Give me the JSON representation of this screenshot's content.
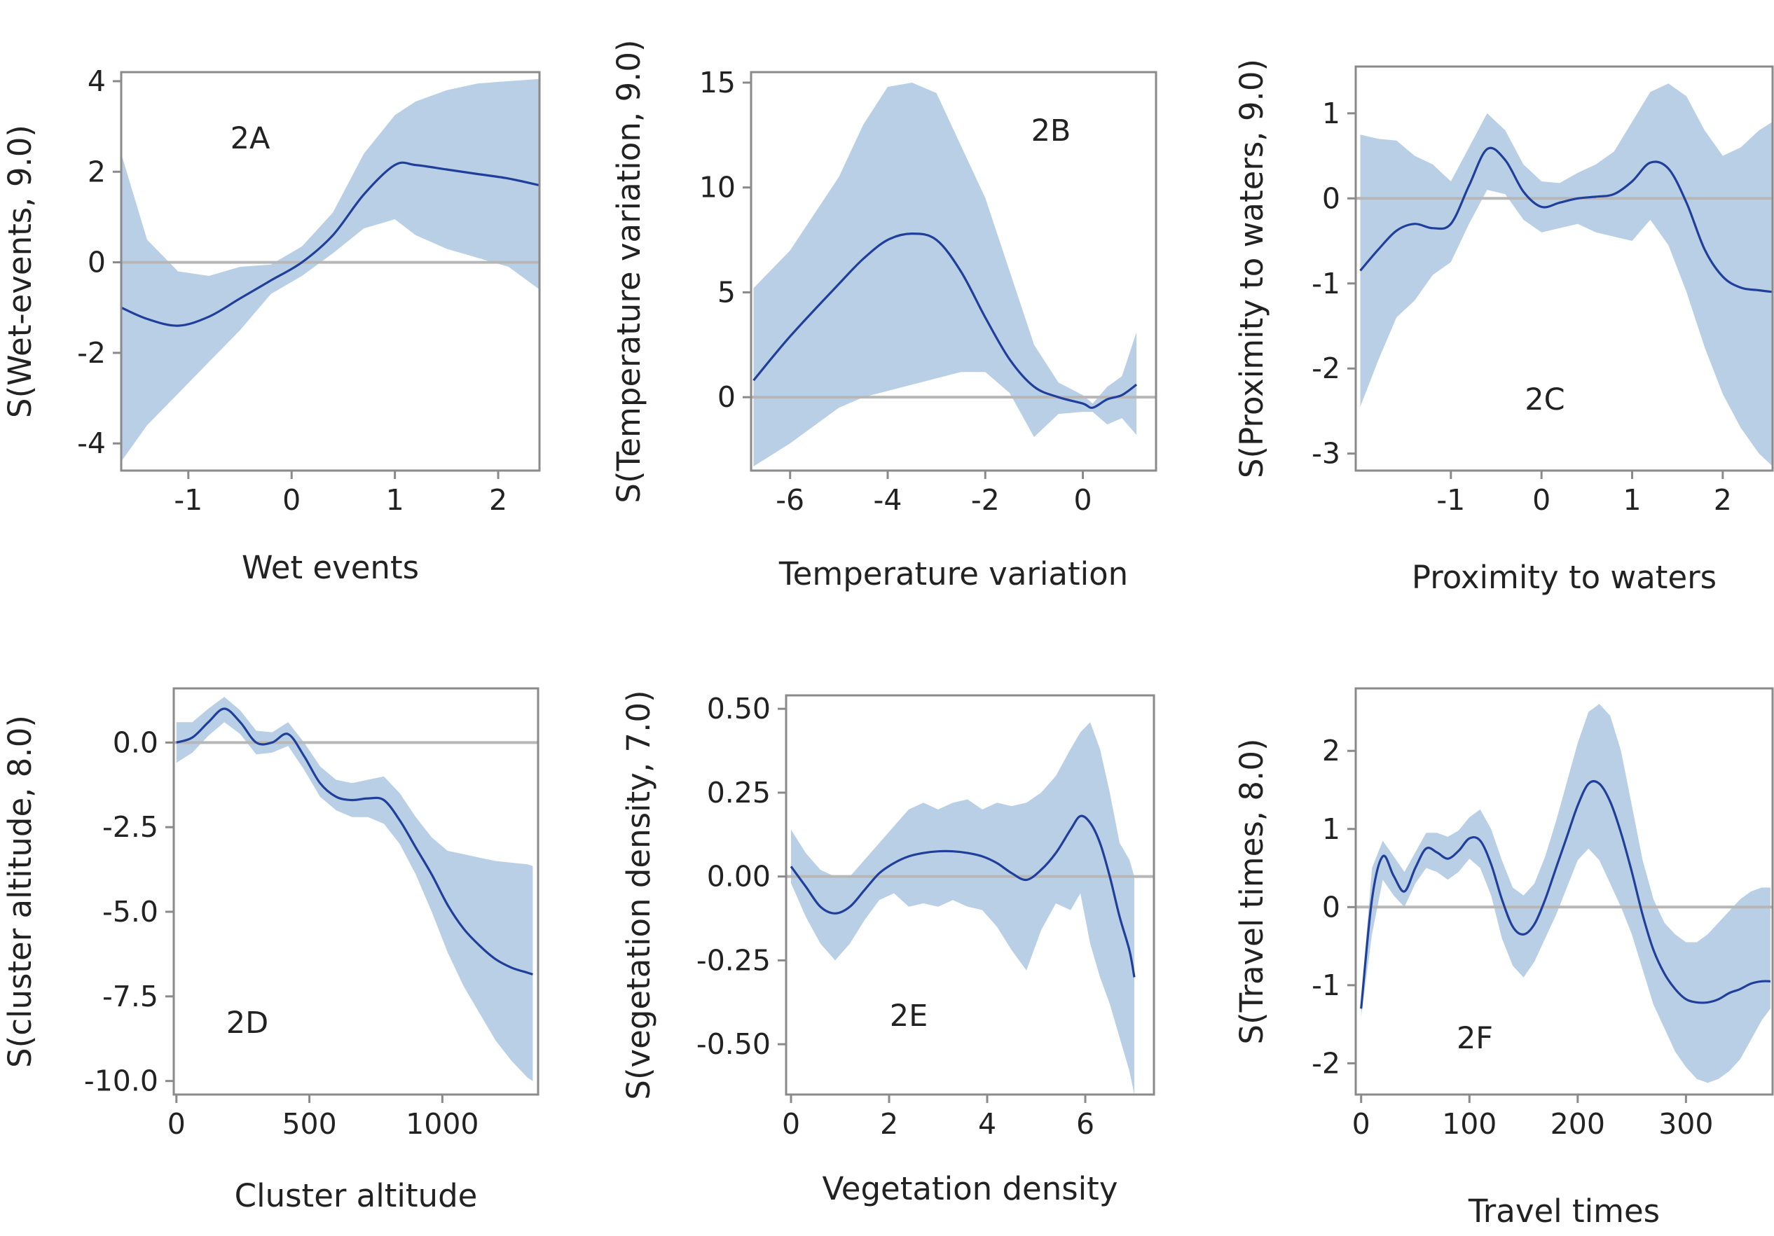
{
  "figure": {
    "background": "#ffffff",
    "band_color": "#b9cfe6",
    "line_color": "#1f3f9a",
    "zero_line_color": "#b7b7b7"
  },
  "chart_data": [
    {
      "type": "line",
      "panel_label": "2A",
      "xlabel": "Wet events",
      "ylabel": "S(Wet-events, 9.0)",
      "xlim": [
        -1.65,
        2.4
      ],
      "ylim": [
        -4.6,
        4.2
      ],
      "xticks": [
        -1,
        0,
        1,
        2
      ],
      "yticks": [
        -4,
        -2,
        0,
        2,
        4
      ],
      "grid": false,
      "reference_line_y": 0,
      "series": [
        {
          "x": [
            -1.65,
            -1.4,
            -1.1,
            -0.8,
            -0.5,
            -0.2,
            0.1,
            0.4,
            0.7,
            1.0,
            1.2,
            1.5,
            1.8,
            2.1,
            2.4
          ],
          "y": [
            -1.0,
            -1.25,
            -1.4,
            -1.2,
            -0.8,
            -0.4,
            0.0,
            0.6,
            1.5,
            2.15,
            2.15,
            2.05,
            1.95,
            1.85,
            1.7
          ],
          "lower": [
            -4.4,
            -3.6,
            -2.9,
            -2.2,
            -1.5,
            -0.7,
            -0.3,
            0.2,
            0.75,
            0.95,
            0.6,
            0.3,
            0.1,
            -0.1,
            -0.6
          ],
          "upper": [
            2.4,
            0.5,
            -0.2,
            -0.3,
            -0.1,
            -0.05,
            0.35,
            1.1,
            2.4,
            3.25,
            3.55,
            3.8,
            3.95,
            4.0,
            4.05
          ]
        }
      ]
    },
    {
      "type": "line",
      "panel_label": "2B",
      "xlabel": "Temperature variation",
      "ylabel": "S(Temperature  variation, 9.0)",
      "xlim": [
        -6.8,
        1.5
      ],
      "ylim": [
        -3.5,
        15.5
      ],
      "xticks": [
        -6,
        -4,
        -2,
        0
      ],
      "yticks": [
        0,
        5,
        10,
        15
      ],
      "grid": false,
      "reference_line_y": 0,
      "series": [
        {
          "x": [
            -6.75,
            -6,
            -5,
            -4.5,
            -4,
            -3.5,
            -3,
            -2.5,
            -2,
            -1.5,
            -1,
            -0.5,
            0,
            0.2,
            0.5,
            0.8,
            1.1
          ],
          "y": [
            0.8,
            2.9,
            5.4,
            6.6,
            7.5,
            7.8,
            7.5,
            6.0,
            3.8,
            1.8,
            0.5,
            0.0,
            -0.3,
            -0.5,
            -0.1,
            0.1,
            0.6
          ],
          "lower": [
            -3.3,
            -2.2,
            -0.5,
            0.0,
            0.3,
            0.6,
            0.9,
            1.2,
            1.2,
            0.2,
            -1.9,
            -0.8,
            -0.7,
            -0.7,
            -1.3,
            -1.0,
            -1.8
          ],
          "upper": [
            5.2,
            7.0,
            10.5,
            13.0,
            14.8,
            15.0,
            14.5,
            12.0,
            9.5,
            6.0,
            2.5,
            0.7,
            0.1,
            -0.3,
            0.5,
            1.0,
            3.1
          ]
        }
      ]
    },
    {
      "type": "line",
      "panel_label": "2C",
      "xlabel": "Proximity to waters",
      "ylabel": "S(Proximity to waters, 9.0)",
      "xlim": [
        -2.05,
        2.55
      ],
      "ylim": [
        -3.2,
        1.55
      ],
      "xticks": [
        -1,
        0,
        1,
        2
      ],
      "yticks": [
        1,
        0,
        -1,
        -2,
        -3
      ],
      "grid": false,
      "reference_line_y": 0,
      "series": [
        {
          "x": [
            -2.0,
            -1.8,
            -1.6,
            -1.4,
            -1.2,
            -1.0,
            -0.8,
            -0.6,
            -0.4,
            -0.2,
            0.0,
            0.2,
            0.4,
            0.6,
            0.8,
            1.0,
            1.2,
            1.4,
            1.6,
            1.8,
            2.0,
            2.2,
            2.4,
            2.55
          ],
          "y": [
            -0.85,
            -0.6,
            -0.38,
            -0.3,
            -0.35,
            -0.3,
            0.15,
            0.58,
            0.45,
            0.08,
            -0.1,
            -0.05,
            0.0,
            0.02,
            0.05,
            0.2,
            0.42,
            0.35,
            -0.05,
            -0.6,
            -0.92,
            -1.05,
            -1.08,
            -1.1
          ],
          "lower": [
            -2.45,
            -1.9,
            -1.4,
            -1.2,
            -0.9,
            -0.75,
            -0.3,
            0.1,
            0.05,
            -0.25,
            -0.4,
            -0.35,
            -0.3,
            -0.4,
            -0.45,
            -0.5,
            -0.25,
            -0.55,
            -1.1,
            -1.75,
            -2.3,
            -2.7,
            -3.0,
            -3.15
          ],
          "upper": [
            0.75,
            0.7,
            0.68,
            0.5,
            0.4,
            0.2,
            0.6,
            1.0,
            0.8,
            0.4,
            0.2,
            0.18,
            0.3,
            0.4,
            0.55,
            0.9,
            1.25,
            1.35,
            1.2,
            0.8,
            0.5,
            0.6,
            0.8,
            0.9
          ]
        }
      ]
    },
    {
      "type": "line",
      "panel_label": "2D",
      "xlabel": "Cluster altitude",
      "ylabel": "S(cluster altitude, 8.0)",
      "xlim": [
        -10,
        1360
      ],
      "ylim": [
        -10.4,
        1.6
      ],
      "xticks": [
        0,
        500,
        1000
      ],
      "yticks": [
        0.0,
        -2.5,
        -5.0,
        -7.5,
        -10.0
      ],
      "ytick_labels": [
        "0.0",
        "-2.5",
        "-5.0",
        "-7.5",
        "-10.0"
      ],
      "grid": false,
      "reference_line_y": 0,
      "series": [
        {
          "x": [
            0,
            60,
            120,
            180,
            240,
            300,
            360,
            420,
            480,
            540,
            600,
            660,
            720,
            780,
            840,
            900,
            960,
            1020,
            1080,
            1140,
            1200,
            1260,
            1320,
            1340
          ],
          "y": [
            0.0,
            0.15,
            0.6,
            1.0,
            0.6,
            0.0,
            0.0,
            0.25,
            -0.4,
            -1.2,
            -1.6,
            -1.7,
            -1.65,
            -1.7,
            -2.3,
            -3.1,
            -3.9,
            -4.8,
            -5.5,
            -6.0,
            -6.4,
            -6.65,
            -6.8,
            -6.85
          ],
          "lower": [
            -0.6,
            -0.3,
            0.2,
            0.6,
            0.25,
            -0.35,
            -0.3,
            -0.1,
            -0.8,
            -1.6,
            -2.0,
            -2.2,
            -2.2,
            -2.4,
            -3.0,
            -3.9,
            -5.0,
            -6.2,
            -7.2,
            -8.0,
            -8.8,
            -9.4,
            -9.9,
            -10.0
          ],
          "upper": [
            0.6,
            0.6,
            1.0,
            1.35,
            0.95,
            0.35,
            0.3,
            0.6,
            0.0,
            -0.7,
            -1.1,
            -1.2,
            -1.1,
            -1.0,
            -1.5,
            -2.2,
            -2.8,
            -3.2,
            -3.3,
            -3.4,
            -3.5,
            -3.55,
            -3.6,
            -3.65
          ]
        }
      ]
    },
    {
      "type": "line",
      "panel_label": "2E",
      "xlabel": "Vegetation density",
      "ylabel": "S(vegetation density, 7.0)",
      "xlim": [
        -0.1,
        7.4
      ],
      "ylim": [
        -0.65,
        0.54
      ],
      "xticks": [
        0,
        2,
        4,
        6
      ],
      "yticks": [
        0.5,
        0.25,
        0.0,
        -0.25,
        -0.5
      ],
      "ytick_labels": [
        "0.50",
        "0.25",
        "0.00",
        "-0.25",
        "-0.50"
      ],
      "grid": false,
      "reference_line_y": 0,
      "series": [
        {
          "x": [
            0,
            0.3,
            0.6,
            0.9,
            1.2,
            1.5,
            1.8,
            2.1,
            2.4,
            2.7,
            3.0,
            3.3,
            3.6,
            3.9,
            4.2,
            4.5,
            4.8,
            5.1,
            5.4,
            5.7,
            5.9,
            6.1,
            6.3,
            6.5,
            6.7,
            6.9,
            7.0
          ],
          "y": [
            0.03,
            -0.03,
            -0.09,
            -0.11,
            -0.09,
            -0.04,
            0.01,
            0.04,
            0.06,
            0.07,
            0.075,
            0.075,
            0.07,
            0.06,
            0.04,
            0.01,
            -0.01,
            0.02,
            0.07,
            0.14,
            0.18,
            0.16,
            0.1,
            0.0,
            -0.12,
            -0.22,
            -0.3
          ],
          "lower": [
            -0.02,
            -0.12,
            -0.2,
            -0.25,
            -0.2,
            -0.13,
            -0.07,
            -0.05,
            -0.09,
            -0.08,
            -0.09,
            -0.07,
            -0.09,
            -0.1,
            -0.15,
            -0.22,
            -0.28,
            -0.16,
            -0.08,
            -0.1,
            -0.05,
            -0.2,
            -0.3,
            -0.38,
            -0.48,
            -0.58,
            -0.65
          ],
          "upper": [
            0.14,
            0.07,
            0.02,
            0.0,
            0.0,
            0.05,
            0.1,
            0.15,
            0.2,
            0.22,
            0.2,
            0.22,
            0.23,
            0.2,
            0.22,
            0.21,
            0.22,
            0.25,
            0.3,
            0.38,
            0.43,
            0.46,
            0.38,
            0.25,
            0.1,
            0.05,
            0.0
          ]
        }
      ]
    },
    {
      "type": "line",
      "panel_label": "2F",
      "xlabel": "Travel times",
      "ylabel": "S(Travel times, 8.0)",
      "xlim": [
        -5,
        380
      ],
      "ylim": [
        -2.4,
        2.8
      ],
      "xticks": [
        0,
        100,
        200,
        300
      ],
      "yticks": [
        2,
        1,
        0,
        -1,
        -2
      ],
      "grid": false,
      "reference_line_y": 0,
      "series": [
        {
          "x": [
            0,
            10,
            20,
            30,
            40,
            50,
            60,
            70,
            80,
            90,
            100,
            110,
            120,
            130,
            140,
            150,
            160,
            170,
            180,
            190,
            200,
            210,
            220,
            230,
            240,
            250,
            260,
            270,
            280,
            290,
            300,
            310,
            320,
            330,
            340,
            350,
            360,
            370,
            378
          ],
          "y": [
            -1.3,
            0.1,
            0.65,
            0.4,
            0.2,
            0.5,
            0.75,
            0.7,
            0.62,
            0.72,
            0.88,
            0.85,
            0.55,
            0.1,
            -0.25,
            -0.35,
            -0.22,
            0.1,
            0.5,
            0.9,
            1.3,
            1.58,
            1.58,
            1.35,
            0.95,
            0.45,
            -0.1,
            -0.55,
            -0.85,
            -1.05,
            -1.18,
            -1.22,
            -1.22,
            -1.18,
            -1.1,
            -1.05,
            -0.98,
            -0.95,
            -0.95
          ],
          "lower": [
            -1.4,
            -0.35,
            0.35,
            0.15,
            0.0,
            0.3,
            0.5,
            0.45,
            0.35,
            0.45,
            0.62,
            0.5,
            0.15,
            -0.4,
            -0.75,
            -0.9,
            -0.7,
            -0.4,
            -0.1,
            0.25,
            0.6,
            0.75,
            0.6,
            0.3,
            0.0,
            -0.35,
            -0.8,
            -1.25,
            -1.55,
            -1.85,
            -2.05,
            -2.2,
            -2.25,
            -2.2,
            -2.1,
            -1.95,
            -1.7,
            -1.45,
            -1.3
          ],
          "upper": [
            -1.2,
            0.5,
            0.85,
            0.65,
            0.45,
            0.7,
            0.95,
            0.95,
            0.9,
            0.98,
            1.15,
            1.25,
            1.0,
            0.6,
            0.25,
            0.15,
            0.3,
            0.65,
            1.1,
            1.6,
            2.1,
            2.5,
            2.6,
            2.45,
            2.0,
            1.3,
            0.6,
            0.1,
            -0.2,
            -0.35,
            -0.45,
            -0.45,
            -0.35,
            -0.2,
            -0.05,
            0.1,
            0.2,
            0.25,
            0.25
          ]
        }
      ]
    }
  ]
}
